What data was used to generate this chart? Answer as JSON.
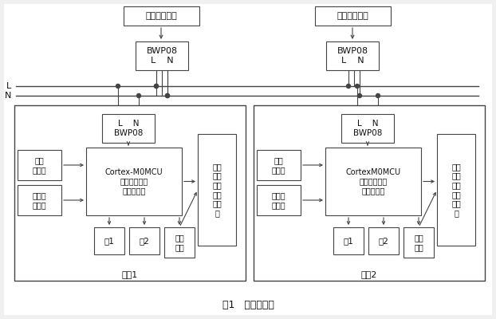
{
  "title": "图1   系统结构图",
  "bg_color": "#ffffff",
  "box_fc": "#ffffff",
  "box_ec": "#444444",
  "line_color": "#444444",
  "text_color": "#111111",
  "top_label1": "智能家居终端",
  "top_label2": "其他可控设备",
  "bwp_label": "BWP08\nL    N",
  "bwp_room_label": "L    N\nBWP08",
  "sensor_bright": "亮度\n传感器",
  "sensor_humid": "温湿度\n传感器",
  "mcu1_label": "Cortex-M0MCU\n控制灯具、窗\n帘、空调等",
  "mcu2_label": "CortexM0MCU\n控制灯具、窗\n帘、空调等",
  "ir_ctrl_label": "红外\n控制\n空调\n电视\n窗帘\n等",
  "lamp1_label": "灯1",
  "lamp2_label": "灯2",
  "ir_learn_label": "红外\n学习",
  "room1_label": "房间1",
  "room2_label": "房间2",
  "L_label": "L",
  "N_label": "N"
}
